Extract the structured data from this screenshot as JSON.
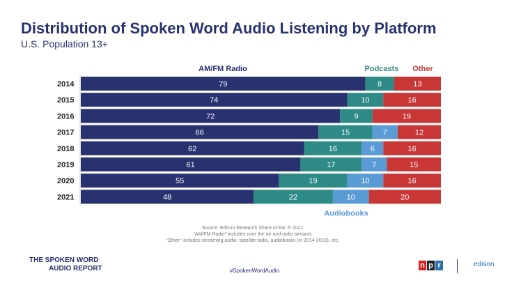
{
  "chart_data": {
    "type": "bar",
    "orientation": "horizontal",
    "stacked": true,
    "title": "Distribution of Spoken Word Audio Listening by Platform",
    "subtitle": "U.S. Population 13+",
    "categories": [
      "2014",
      "2015",
      "2016",
      "2017",
      "2018",
      "2019",
      "2020",
      "2021"
    ],
    "series": [
      {
        "name": "AM/FM Radio",
        "color": "#283270",
        "values": [
          79,
          74,
          72,
          66,
          62,
          61,
          55,
          48
        ]
      },
      {
        "name": "Podcasts",
        "color": "#2e8a86",
        "values": [
          8,
          10,
          9,
          15,
          16,
          17,
          19,
          22
        ]
      },
      {
        "name": "Audiobooks",
        "color": "#5b9bd5",
        "values": [
          null,
          null,
          null,
          7,
          6,
          7,
          10,
          10
        ]
      },
      {
        "name": "Other",
        "color": "#c83636",
        "values": [
          13,
          16,
          19,
          12,
          16,
          15,
          16,
          20
        ]
      }
    ],
    "xlim": [
      0,
      100
    ],
    "grid": false,
    "legend": "labels above/below bars"
  },
  "notes": [
    "Source: Edison Research Share of Ear ® 2021",
    "“AM/FM Radio” includes over the air and radio streams",
    "“Other” includes streaming audio, satellite radio, audiobooks (in 2014-2016), etc."
  ],
  "footer": {
    "logo_line1": "THE SPOKEN WORD",
    "logo_line2": "AUDIO REPORT",
    "hashtag": "#SpokenWordAudio",
    "npr": [
      "n",
      "p",
      "r"
    ],
    "edison": "edison"
  }
}
